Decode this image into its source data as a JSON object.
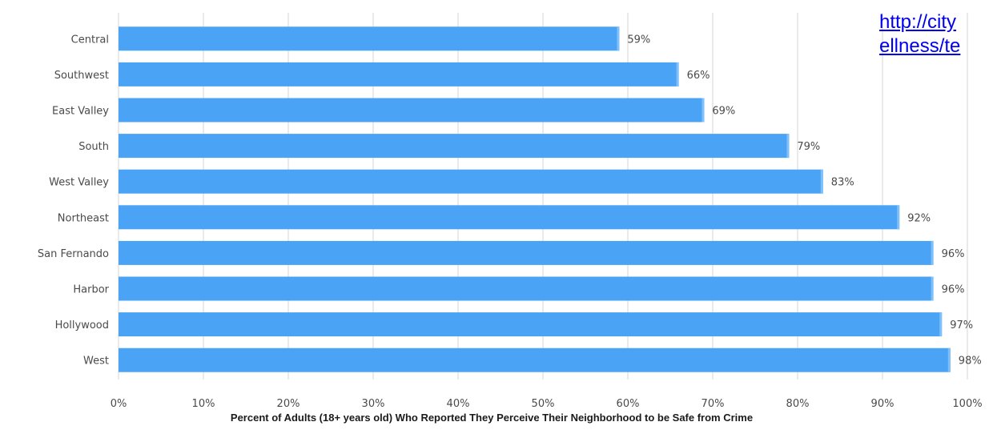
{
  "link": {
    "line1": "http://city",
    "line2": "ellness/te"
  },
  "colors": {
    "bar": "#4aa3f5",
    "bar_highlight": "#7fc0fa",
    "grid": "#d6d6d6",
    "text": "#4a4a4a",
    "link": "#0000ee"
  },
  "chart_data": {
    "type": "bar",
    "orientation": "horizontal",
    "categories": [
      "Central",
      "Southwest",
      "East Valley",
      "South",
      "West Valley",
      "Northeast",
      "San Fernando",
      "Harbor",
      "Hollywood",
      "West"
    ],
    "values": [
      59,
      66,
      69,
      79,
      83,
      92,
      96,
      96,
      97,
      98
    ],
    "data_labels": [
      "59%",
      "66%",
      "69%",
      "79%",
      "83%",
      "92%",
      "96%",
      "96%",
      "97%",
      "98%"
    ],
    "xlabel": "Percent of Adults (18+ years old) Who Reported They Perceive Their Neighborhood to be Safe from Crime",
    "ylabel": "",
    "xlim": [
      0,
      100
    ],
    "x_ticks": [
      "0%",
      "10%",
      "20%",
      "30%",
      "40%",
      "50%",
      "60%",
      "70%",
      "80%",
      "90%",
      "100%"
    ],
    "grid": "vertical",
    "legend": "none"
  }
}
